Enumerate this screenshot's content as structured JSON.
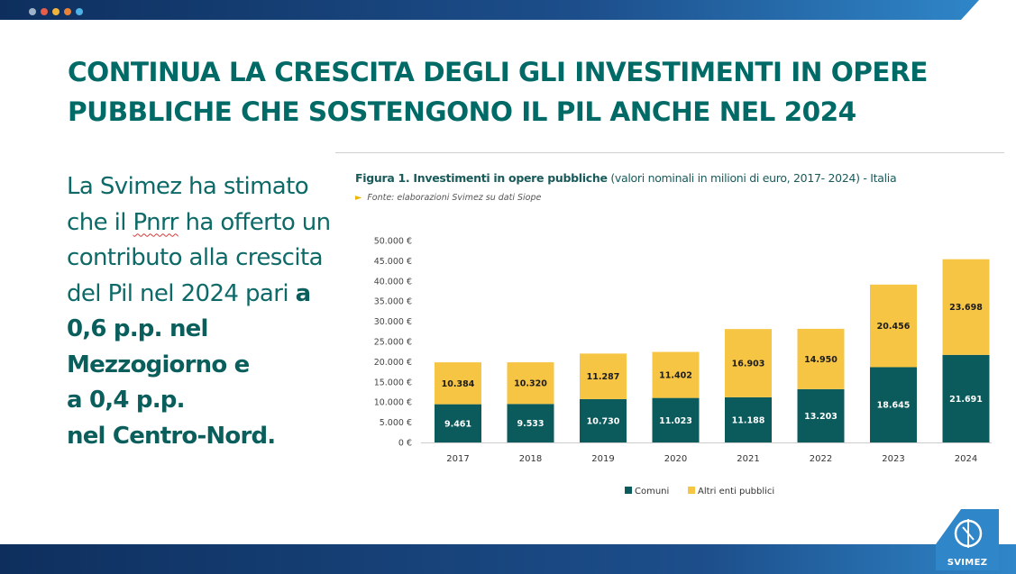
{
  "slide": {
    "title": "CONTINUA LA CRESCITA DEGLI GLI INVESTIMENTI IN OPERE PUBBLICHE CHE SOSTENGONO IL PIL ANCHE NEL 2024",
    "body_part1": "La Svimez ha stimato che il ",
    "body_pnrr": "Pnrr",
    "body_part2": " ha offerto un contributo alla crescita del Pil nel 2024 pari ",
    "body_bold1": "a 0,6 p.p. nel Mezzogiorno e",
    "body_bold2": "a 0,4 p.p.",
    "body_bold3": "nel Centro-Nord.",
    "logo_text": "SVIMEZ",
    "colors": {
      "accent": "#006a66",
      "bar_dark": "#0b5a5c",
      "bar_light": "#f6c544",
      "band": "#1d4f8c"
    }
  },
  "figure": {
    "title_bold": "Figura 1. Investimenti in opere pubbliche",
    "title_rest": " (valori nominali in milioni di euro, 2017- 2024) - Italia",
    "source": "Fonte: elaborazioni Svimez su dati Siope"
  },
  "chart_data": {
    "type": "bar",
    "stacked": true,
    "categories": [
      "2017",
      "2018",
      "2019",
      "2020",
      "2021",
      "2022",
      "2023",
      "2024"
    ],
    "series": [
      {
        "name": "Comuni",
        "color": "#0b5a5c",
        "values": [
          9461,
          9533,
          10730,
          11023,
          11188,
          13203,
          18645,
          21691
        ],
        "labels": [
          "9.461",
          "9.533",
          "10.730",
          "11.023",
          "11.188",
          "13.203",
          "18.645",
          "21.691"
        ]
      },
      {
        "name": "Altri enti pubblici",
        "color": "#f6c544",
        "values": [
          10384,
          10320,
          11287,
          11402,
          16903,
          14950,
          20456,
          23698
        ],
        "labels": [
          "10.384",
          "10.320",
          "11.287",
          "11.402",
          "16.903",
          "14.950",
          "20.456",
          "23.698"
        ]
      }
    ],
    "ylim": [
      0,
      50000
    ],
    "yticks": [
      0,
      5000,
      10000,
      15000,
      20000,
      25000,
      30000,
      35000,
      40000,
      45000,
      50000
    ],
    "ytick_labels": [
      "0 €",
      "5.000 €",
      "10.000 €",
      "15.000 €",
      "20.000 €",
      "25.000 €",
      "30.000 €",
      "35.000 €",
      "40.000 €",
      "45.000 €",
      "50.000 €"
    ],
    "grid": false,
    "legend": "bottom-center"
  }
}
